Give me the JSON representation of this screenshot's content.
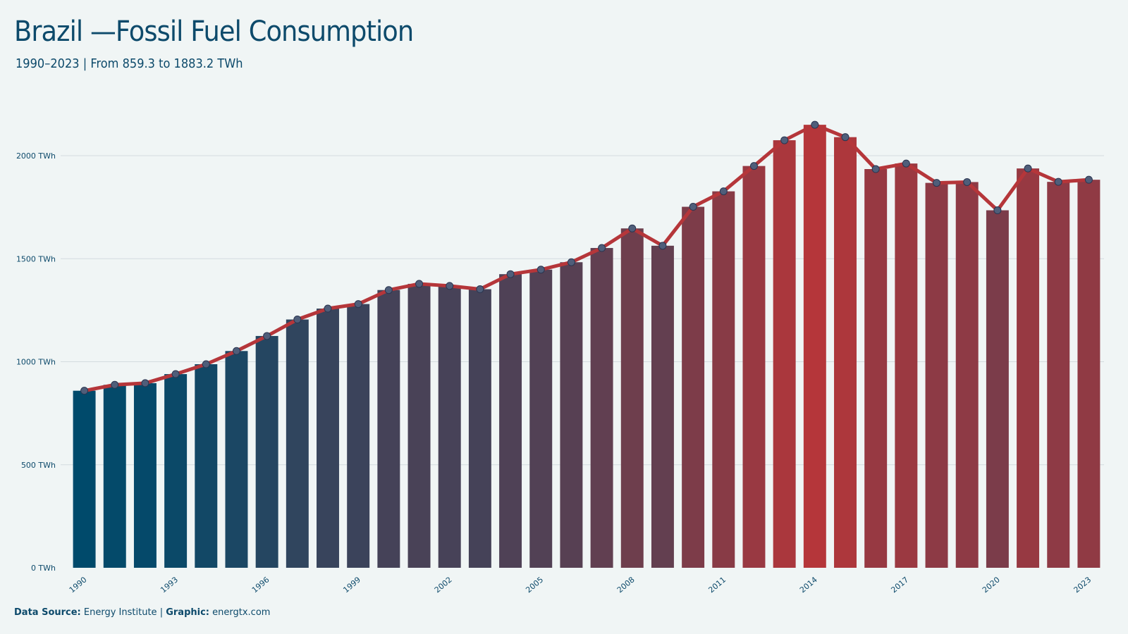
{
  "title": "Brazil —Fossil Fuel Consumption",
  "subtitle": "1990–2023 | From 859.3 to 1883.2 TWh",
  "footer": {
    "source_label": "Data Source:",
    "source_value": "Energy Institute",
    "separator": "|",
    "graphic_label": "Graphic:",
    "graphic_value": "energtx.com"
  },
  "colors": {
    "background": "#f0f5f5",
    "gradient_low": "#004a6b",
    "gradient_high": "#b5363a",
    "line": "#b5363a",
    "marker_fill": "#4f5e7a",
    "grid": "#d3dcdf",
    "text": "#0d4a6b"
  },
  "chart_data": {
    "type": "bar",
    "unit": "TWh",
    "x": [
      1990,
      1991,
      1992,
      1993,
      1994,
      1995,
      1996,
      1997,
      1998,
      1999,
      2000,
      2001,
      2002,
      2003,
      2004,
      2005,
      2006,
      2007,
      2008,
      2009,
      2010,
      2011,
      2012,
      2013,
      2014,
      2015,
      2016,
      2017,
      2018,
      2019,
      2020,
      2021,
      2022,
      2023
    ],
    "values": [
      859.3,
      888,
      896,
      940,
      988,
      1052,
      1125,
      1205,
      1258,
      1280,
      1348,
      1378,
      1368,
      1352,
      1425,
      1447,
      1483,
      1552,
      1647,
      1563,
      1752,
      1827,
      1950,
      2075,
      2150,
      2090,
      1935,
      1962,
      1868,
      1872,
      1735,
      1938,
      1873,
      1883.2
    ],
    "ylim": [
      0,
      2250
    ],
    "yticks": [
      0,
      500,
      1000,
      1500,
      2000
    ],
    "ytick_labels": [
      "0 TWh",
      "500 TWh",
      "1000 TWh",
      "1500 TWh",
      "2000 TWh"
    ],
    "xtick_labels": [
      "1990",
      "1993",
      "1996",
      "1999",
      "2002",
      "2005",
      "2008",
      "2011",
      "2014",
      "2017",
      "2020",
      "2023"
    ],
    "overlay": "line with markers",
    "grid": true,
    "legend": "none"
  }
}
